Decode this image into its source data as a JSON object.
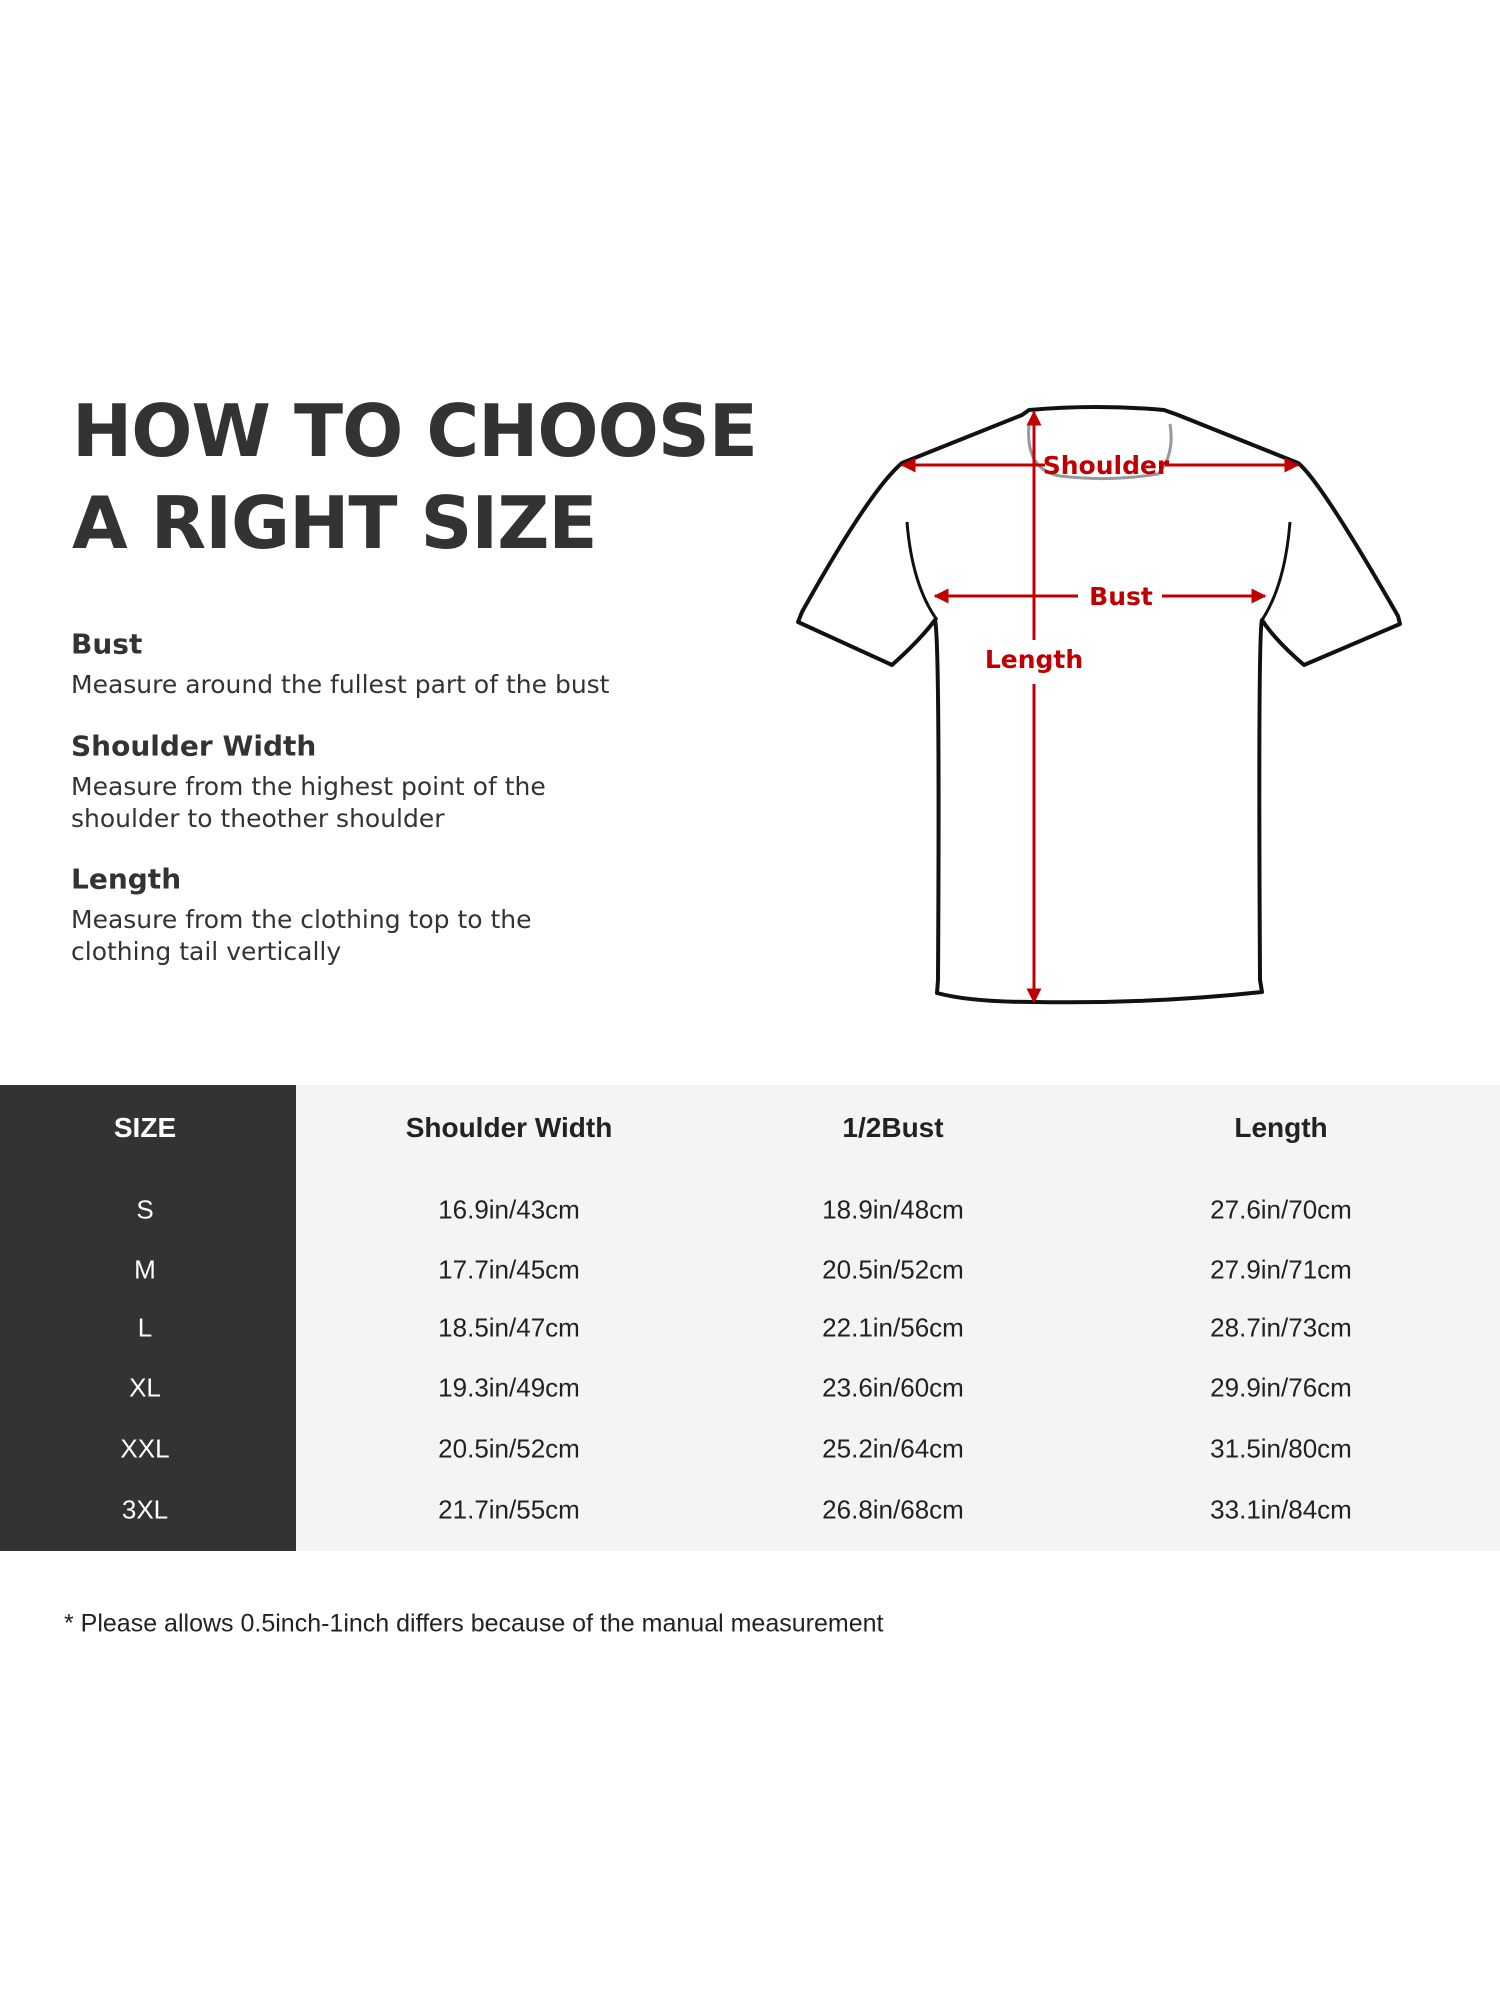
{
  "heading": {
    "line1": "HOW TO CHOOSE",
    "line2": "A RIGHT SIZE"
  },
  "guides": [
    {
      "title": "Bust",
      "desc": [
        "Measure around the fullest part of the bust"
      ]
    },
    {
      "title": "Shoulder Width",
      "desc": [
        "Measure from the highest point of the",
        "shoulder to theother shoulder"
      ]
    },
    {
      "title": "Length",
      "desc": [
        "Measure from the clothing top to the",
        "clothing tail vertically"
      ]
    }
  ],
  "diagram": {
    "shoulder_label": "Shoulder",
    "bust_label": "Bust",
    "length_label": "Length",
    "arrow_color": "#c00000"
  },
  "table": {
    "headers": [
      "SIZE",
      "Shoulder Width",
      "1/2Bust",
      "Length"
    ],
    "rows": [
      [
        "S",
        "16.9in/43cm",
        "18.9in/48cm",
        "27.6in/70cm"
      ],
      [
        "M",
        "17.7in/45cm",
        "20.5in/52cm",
        "27.9in/71cm"
      ],
      [
        "L",
        "18.5in/47cm",
        "22.1in/56cm",
        "28.7in/73cm"
      ],
      [
        "XL",
        "19.3in/49cm",
        "23.6in/60cm",
        "29.9in/76cm"
      ],
      [
        "XXL",
        "20.5in/52cm",
        "25.2in/64cm",
        "31.5in/80cm"
      ],
      [
        "3XL",
        "21.7in/55cm",
        "26.8in/68cm",
        "33.1in/84cm"
      ]
    ]
  },
  "footnote": "* Please allows 0.5inch-1inch differs because of the  manual measurement"
}
